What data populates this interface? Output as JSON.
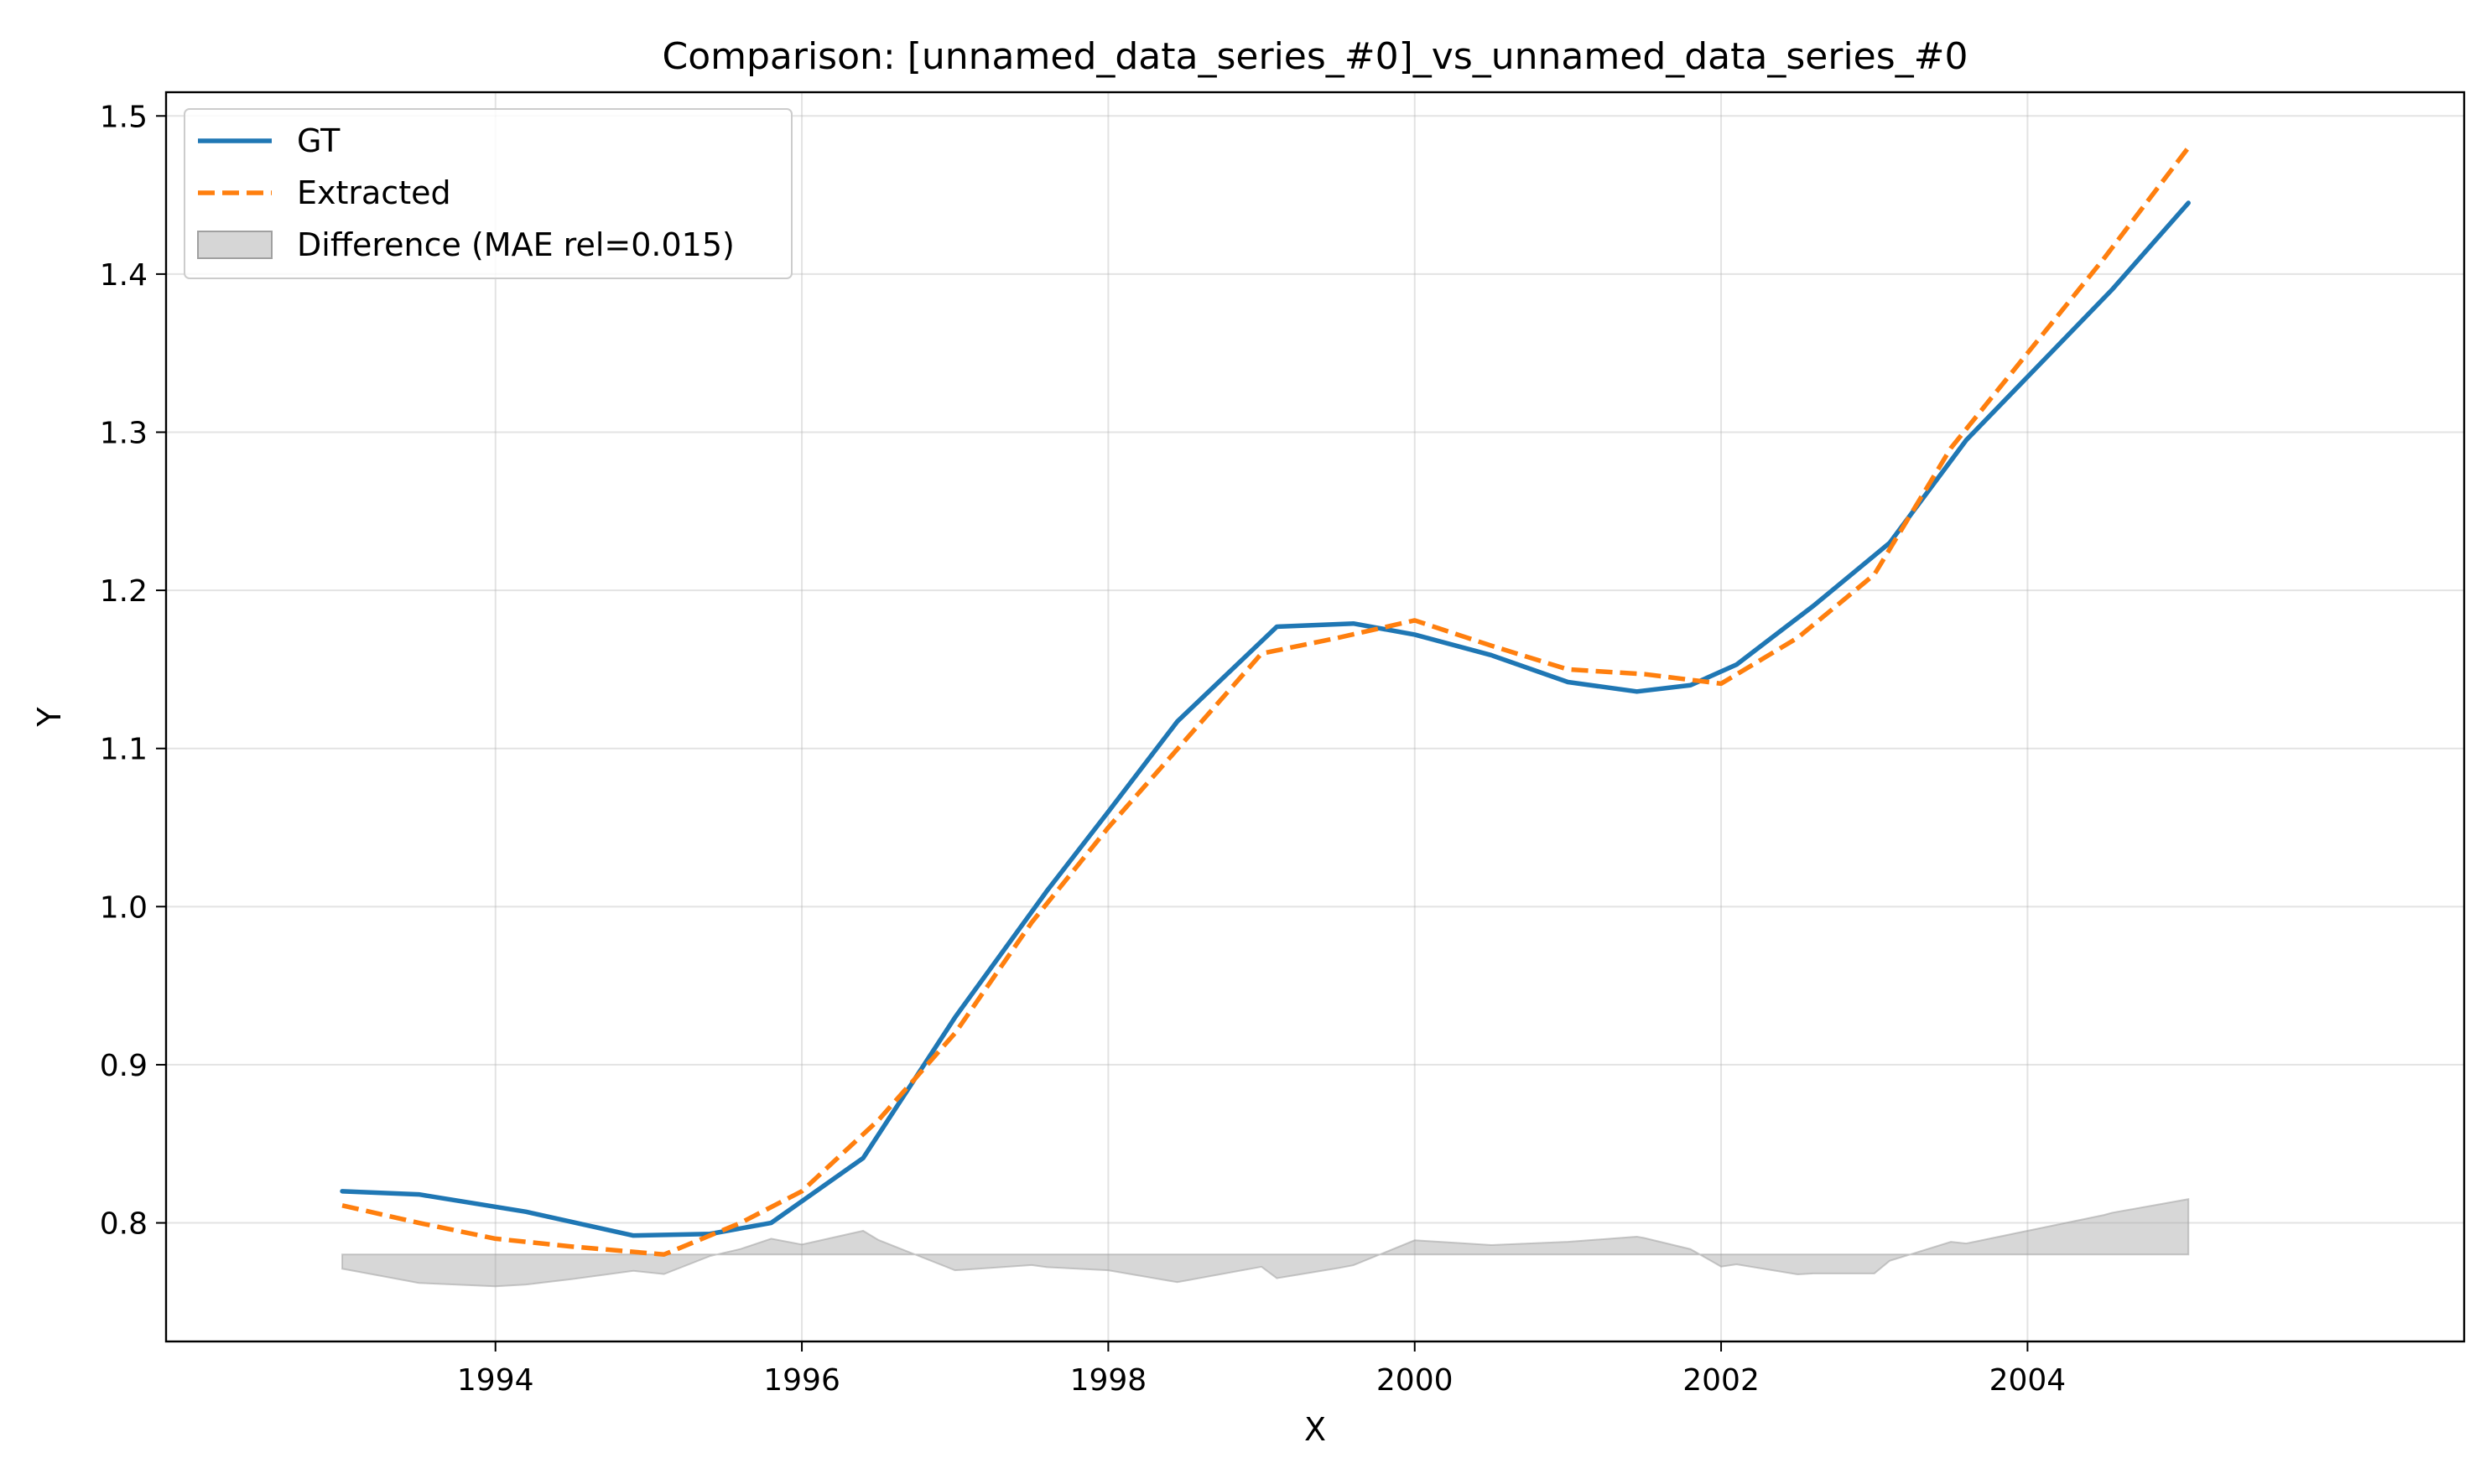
{
  "chart_data": {
    "type": "line",
    "title": "Comparison: [unnamed_data_series_#0]_vs_unnamed_data_series_#0",
    "xlabel": "X",
    "ylabel": "Y",
    "xlim": [
      1991.85,
      2006.85
    ],
    "ylim": [
      0.725,
      1.515
    ],
    "xticks": [
      1994,
      1996,
      1998,
      2000,
      2002,
      2004
    ],
    "yticks": [
      0.8,
      0.9,
      1.0,
      1.1,
      1.2,
      1.3,
      1.4,
      1.5
    ],
    "xtick_labels": [
      "1994",
      "1996",
      "1998",
      "2000",
      "2002",
      "2004"
    ],
    "ytick_labels": [
      "0.8",
      "0.9",
      "1.0",
      "1.1",
      "1.2",
      "1.3",
      "1.4",
      "1.5"
    ],
    "grid": true,
    "legend_position": "top-left",
    "difference_baseline": 0.78,
    "series": [
      {
        "name": "GT",
        "role": "gt",
        "color": "#1f77b4",
        "style": "solid",
        "x": [
          1993.0,
          1993.5,
          1994.2,
          1994.9,
          1995.4,
          1995.8,
          1996.4,
          1997.0,
          1997.6,
          1998.0,
          1998.45,
          1999.1,
          1999.6,
          2000.0,
          2000.5,
          2001.0,
          2001.45,
          2001.8,
          2002.1,
          2002.6,
          2003.1,
          2003.6,
          2004.0,
          2004.55,
          2005.05
        ],
        "y": [
          0.82,
          0.818,
          0.807,
          0.792,
          0.793,
          0.8,
          0.841,
          0.93,
          1.01,
          1.06,
          1.117,
          1.177,
          1.179,
          1.172,
          1.159,
          1.142,
          1.136,
          1.14,
          1.153,
          1.19,
          1.23,
          1.295,
          1.335,
          1.39,
          1.445
        ]
      },
      {
        "name": "Extracted",
        "role": "extracted",
        "color": "#ff7f0e",
        "style": "dashed",
        "x": [
          1993.0,
          1993.5,
          1994.0,
          1994.5,
          1995.1,
          1995.6,
          1996.0,
          1996.5,
          1997.0,
          1997.5,
          1998.0,
          1998.5,
          1999.0,
          1999.5,
          2000.0,
          2000.5,
          2001.0,
          2001.5,
          2002.0,
          2002.5,
          2003.0,
          2003.5,
          2004.0,
          2004.5,
          2005.05
        ],
        "y": [
          0.811,
          0.8,
          0.79,
          0.785,
          0.78,
          0.8,
          0.82,
          0.865,
          0.92,
          0.99,
          1.05,
          1.105,
          1.16,
          1.17,
          1.181,
          1.165,
          1.15,
          1.147,
          1.141,
          1.17,
          1.21,
          1.29,
          1.35,
          1.41,
          1.48
        ]
      }
    ],
    "legend": [
      {
        "label": "GT",
        "kind": "solid-line",
        "color": "#1f77b4"
      },
      {
        "label": "Extracted",
        "kind": "dashed-line",
        "color": "#ff7f0e"
      },
      {
        "label": "Difference (MAE rel=0.015)",
        "kind": "patch",
        "color": "#d6d6d6"
      }
    ]
  }
}
